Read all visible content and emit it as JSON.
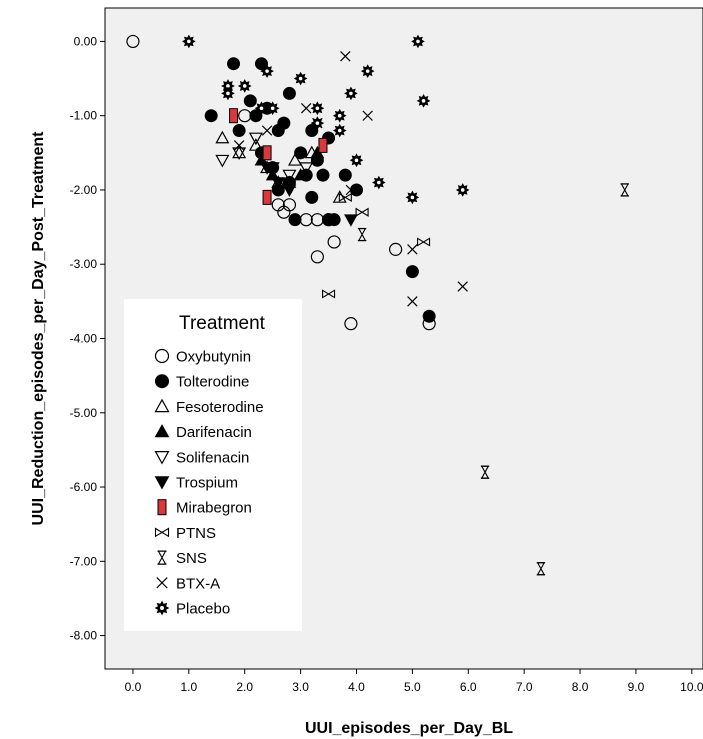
{
  "chart_data": {
    "type": "scatter",
    "xlabel": "UUI_episodes_per_Day_BL",
    "ylabel": "UUI_Reduction_episodes_per_Day_Post_Treatment",
    "xlim": [
      -0.5,
      10.2
    ],
    "ylim": [
      -8.45,
      0.45
    ],
    "x_ticks": [
      0,
      1,
      2,
      3,
      4,
      5,
      6,
      7,
      8,
      9,
      10
    ],
    "x_tick_labels": [
      "0.0",
      "1.0",
      "2.0",
      "3.0",
      "4.0",
      "5.0",
      "6.0",
      "7.0",
      "8.0",
      "9.0",
      "10.0"
    ],
    "y_ticks": [
      0,
      -1,
      -2,
      -3,
      -4,
      -5,
      -6,
      -7,
      -8
    ],
    "y_tick_labels": [
      "0.00",
      "-1.00",
      "-2.00",
      "-3.00",
      "-4.00",
      "-5.00",
      "-6.00",
      "-7.00",
      "-8.00"
    ],
    "grid": false,
    "plot_background": "#f0f0f0",
    "legend": {
      "title": "Treatment",
      "placement": "lower-left"
    },
    "series": [
      {
        "name": "Oxybutynin",
        "marker": "circle-open",
        "color": "#000000",
        "x": [
          0.0,
          2.0,
          2.6,
          2.7,
          2.8,
          3.1,
          3.3,
          3.3,
          3.5,
          3.6,
          3.9,
          4.7,
          5.3
        ],
        "y": [
          0.0,
          -1.0,
          -2.2,
          -2.3,
          -2.2,
          -2.4,
          -2.4,
          -2.9,
          -2.4,
          -2.7,
          -3.8,
          -2.8,
          -3.8
        ]
      },
      {
        "name": "Tolterodine",
        "marker": "circle-filled",
        "color": "#000000",
        "x": [
          1.4,
          1.8,
          1.9,
          2.1,
          2.2,
          2.3,
          2.3,
          2.4,
          2.5,
          2.6,
          2.6,
          2.7,
          2.8,
          2.8,
          2.9,
          3.0,
          3.1,
          3.2,
          3.2,
          3.3,
          3.4,
          3.5,
          3.5,
          3.6,
          3.8,
          4.0,
          5.0,
          5.3
        ],
        "y": [
          -1.0,
          -0.3,
          -1.2,
          -0.8,
          -1.0,
          -0.3,
          -1.5,
          -0.9,
          -1.7,
          -1.2,
          -2.0,
          -1.1,
          -0.7,
          -1.9,
          -2.4,
          -1.5,
          -1.8,
          -1.2,
          -2.1,
          -1.6,
          -1.8,
          -1.3,
          -2.4,
          -2.4,
          -1.8,
          -2.0,
          -3.1,
          -3.7
        ]
      },
      {
        "name": "Fesoterodine",
        "marker": "triangle-up-open",
        "color": "#000000",
        "x": [
          1.6,
          1.9,
          2.2,
          2.4,
          2.6,
          2.9,
          3.2,
          3.7
        ],
        "y": [
          -1.3,
          -1.5,
          -1.4,
          -1.7,
          -1.9,
          -1.6,
          -1.5,
          -2.1
        ]
      },
      {
        "name": "Darifenacin",
        "marker": "triangle-up-filled",
        "color": "#000000",
        "x": [
          2.3,
          2.5,
          2.8,
          3.0,
          3.3
        ],
        "y": [
          -1.6,
          -1.8,
          -1.9,
          -1.8,
          -1.5
        ]
      },
      {
        "name": "Solifenacin",
        "marker": "triangle-down-open",
        "color": "#000000",
        "x": [
          1.6,
          1.9,
          2.2,
          2.5,
          2.8,
          3.1
        ],
        "y": [
          -1.6,
          -1.5,
          -1.3,
          -1.7,
          -1.8,
          -1.7
        ]
      },
      {
        "name": "Trospium",
        "marker": "triangle-down-filled",
        "color": "#000000",
        "x": [
          2.4,
          2.6,
          2.8,
          3.9
        ],
        "y": [
          -1.7,
          -1.9,
          -2.0,
          -2.4
        ]
      },
      {
        "name": "Mirabegron",
        "marker": "bar-red",
        "color": "#d9393b",
        "x": [
          1.8,
          2.4,
          2.4,
          3.4
        ],
        "y": [
          -1.0,
          -1.5,
          -2.1,
          -1.4
        ]
      },
      {
        "name": "PTNS",
        "marker": "bowtie",
        "color": "#000000",
        "x": [
          3.5,
          3.8,
          4.1,
          5.2
        ],
        "y": [
          -3.4,
          -2.1,
          -2.3,
          -2.7
        ]
      },
      {
        "name": "SNS",
        "marker": "hourglass",
        "color": "#000000",
        "x": [
          4.1,
          6.3,
          7.3,
          8.8
        ],
        "y": [
          -2.6,
          -5.8,
          -7.1,
          -2.0
        ]
      },
      {
        "name": "BTX-A",
        "marker": "x",
        "color": "#000000",
        "x": [
          1.9,
          2.4,
          3.1,
          3.3,
          3.8,
          3.9,
          4.2,
          5.0,
          5.0,
          5.9
        ],
        "y": [
          -1.4,
          -1.2,
          -0.9,
          -1.1,
          -0.2,
          -2.0,
          -1.0,
          -3.5,
          -2.8,
          -3.3
        ]
      },
      {
        "name": "Placebo",
        "marker": "gear",
        "color": "#000000",
        "x": [
          1.0,
          1.7,
          1.7,
          2.0,
          2.3,
          2.4,
          2.5,
          3.0,
          3.3,
          3.3,
          3.7,
          3.7,
          3.9,
          4.0,
          4.2,
          4.4,
          5.0,
          5.1,
          5.2,
          5.9
        ],
        "y": [
          0.0,
          -0.6,
          -0.7,
          -0.6,
          -0.9,
          -0.4,
          -0.9,
          -0.5,
          -0.9,
          -1.1,
          -1.0,
          -1.2,
          -0.7,
          -1.6,
          -0.4,
          -1.9,
          -2.1,
          0.0,
          -0.8,
          -2.0
        ]
      }
    ]
  }
}
